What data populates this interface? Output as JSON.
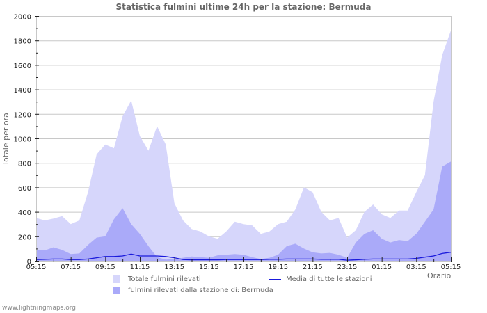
{
  "title": "Statistica fulmini ultime 24h per la stazione: Bermuda",
  "footer": "www.lightningmaps.org",
  "colors": {
    "total_fill": "#d6d6fb",
    "station_fill": "#aaaaf9",
    "average_line": "#1a1adc",
    "grid": "#c8c8c8",
    "axis": "#c8c8c8"
  },
  "chart_data": {
    "type": "area",
    "title": "Statistica fulmini ultime 24h per la stazione: Bermuda",
    "xlabel": "Orario",
    "ylabel": "Totale per ora",
    "ylim": [
      0,
      2000
    ],
    "yticks": [
      0,
      200,
      400,
      600,
      800,
      1000,
      1200,
      1400,
      1600,
      1800,
      2000
    ],
    "xtick_labels": [
      "05:15",
      "07:15",
      "09:15",
      "11:15",
      "13:15",
      "15:15",
      "17:15",
      "19:15",
      "21:15",
      "23:15",
      "01:15",
      "03:15",
      "05:15"
    ],
    "grid": true,
    "legend_position": "bottom",
    "x": [
      "05:15",
      "05:45",
      "06:15",
      "06:45",
      "07:15",
      "07:45",
      "08:15",
      "08:45",
      "09:15",
      "09:45",
      "10:15",
      "10:45",
      "11:15",
      "11:45",
      "12:15",
      "12:45",
      "13:15",
      "13:45",
      "14:15",
      "14:45",
      "15:15",
      "15:45",
      "16:15",
      "16:45",
      "17:15",
      "17:45",
      "18:15",
      "18:45",
      "19:15",
      "19:45",
      "20:15",
      "20:45",
      "21:15",
      "21:45",
      "22:15",
      "22:45",
      "23:15",
      "23:45",
      "00:15",
      "00:45",
      "01:15",
      "01:45",
      "02:15",
      "02:45",
      "03:15",
      "03:45",
      "04:15",
      "04:45",
      "05:15"
    ],
    "series": [
      {
        "name": "Totale fulmini rilevati",
        "values": [
          350,
          330,
          345,
          365,
          300,
          330,
          560,
          870,
          950,
          920,
          1180,
          1310,
          1020,
          900,
          1100,
          950,
          470,
          330,
          260,
          240,
          200,
          180,
          240,
          320,
          300,
          290,
          220,
          240,
          300,
          320,
          420,
          600,
          560,
          400,
          330,
          350,
          190,
          250,
          400,
          460,
          380,
          350,
          410,
          410,
          560,
          700,
          1300,
          1680,
          1880
        ]
      },
      {
        "name": "fulmini rilevati dalla stazione di: Bermuda",
        "values": [
          90,
          85,
          110,
          90,
          55,
          60,
          130,
          190,
          200,
          340,
          430,
          300,
          220,
          120,
          30,
          10,
          15,
          25,
          35,
          30,
          25,
          45,
          50,
          55,
          50,
          30,
          15,
          25,
          50,
          120,
          140,
          100,
          70,
          60,
          65,
          50,
          25,
          150,
          220,
          250,
          180,
          150,
          170,
          160,
          220,
          320,
          420,
          770,
          810
        ]
      },
      {
        "name": "Media di tutte le stazioni",
        "values": [
          10,
          12,
          15,
          15,
          10,
          10,
          15,
          25,
          35,
          35,
          40,
          55,
          40,
          40,
          40,
          35,
          25,
          10,
          8,
          8,
          8,
          8,
          10,
          10,
          10,
          10,
          10,
          12,
          12,
          15,
          15,
          15,
          15,
          12,
          12,
          12,
          5,
          8,
          12,
          15,
          15,
          15,
          15,
          15,
          20,
          30,
          40,
          60,
          70
        ]
      }
    ]
  },
  "legend": [
    {
      "label": "Totale fulmini rilevati",
      "type": "area"
    },
    {
      "label": "fulmini rilevati dalla stazione di: Bermuda",
      "type": "area"
    },
    {
      "label": "Media di tutte le stazioni",
      "type": "line"
    }
  ]
}
